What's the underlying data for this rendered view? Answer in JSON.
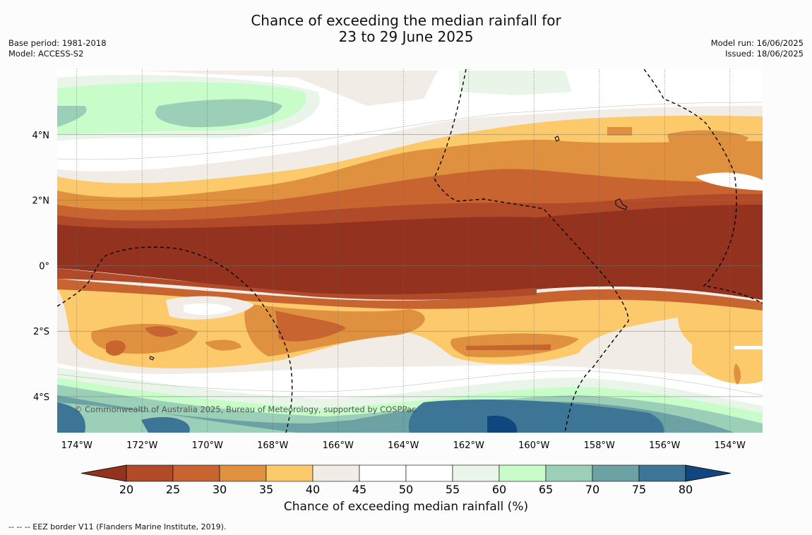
{
  "title": {
    "line1": "Chance of exceeding the median rainfall for",
    "line2": "23 to 29 June 2025"
  },
  "meta_left": {
    "base_period": "Base period: 1981-2018",
    "model": "Model: ACCESS-S2"
  },
  "meta_right": {
    "model_run": "Model run: 16/06/2025",
    "issued": "Issued: 18/06/2025"
  },
  "map": {
    "lat_labels": [
      "4°N",
      "2°N",
      "0°",
      "2°S",
      "4°S"
    ],
    "lat_values": [
      4,
      2,
      0,
      -2,
      -4
    ],
    "lon_labels": [
      "174°W",
      "172°W",
      "170°W",
      "168°W",
      "166°W",
      "164°W",
      "162°W",
      "160°W",
      "158°W",
      "156°W",
      "154°W"
    ],
    "lon_values": [
      -174,
      -172,
      -170,
      -168,
      -166,
      -164,
      -162,
      -160,
      -158,
      -156,
      -154
    ],
    "lat_range": [
      -5.1,
      6.0
    ],
    "lon_range": [
      -174.6,
      -153.0
    ],
    "copyright": "© Commonwealth of Australia 2025, Bureau of Meteorology, supported by COSPPac"
  },
  "colorbar": {
    "label": "Chance of exceeding median rainfall (%)",
    "ticks": [
      "20",
      "25",
      "30",
      "35",
      "40",
      "45",
      "50",
      "55",
      "60",
      "65",
      "70",
      "75",
      "80"
    ],
    "colors": [
      "#93321e",
      "#b04a28",
      "#c8642f",
      "#e0913f",
      "#fdca6b",
      "#f1ece6",
      "#ffffff",
      "#ffffff",
      "#e8f5e8",
      "#c8fcc9",
      "#9bcfb7",
      "#6da2a4",
      "#3d7597",
      "#11467f"
    ]
  },
  "footer": "-- -- -- EEZ border V11 (Flanders Marine Institute, 2019)."
}
